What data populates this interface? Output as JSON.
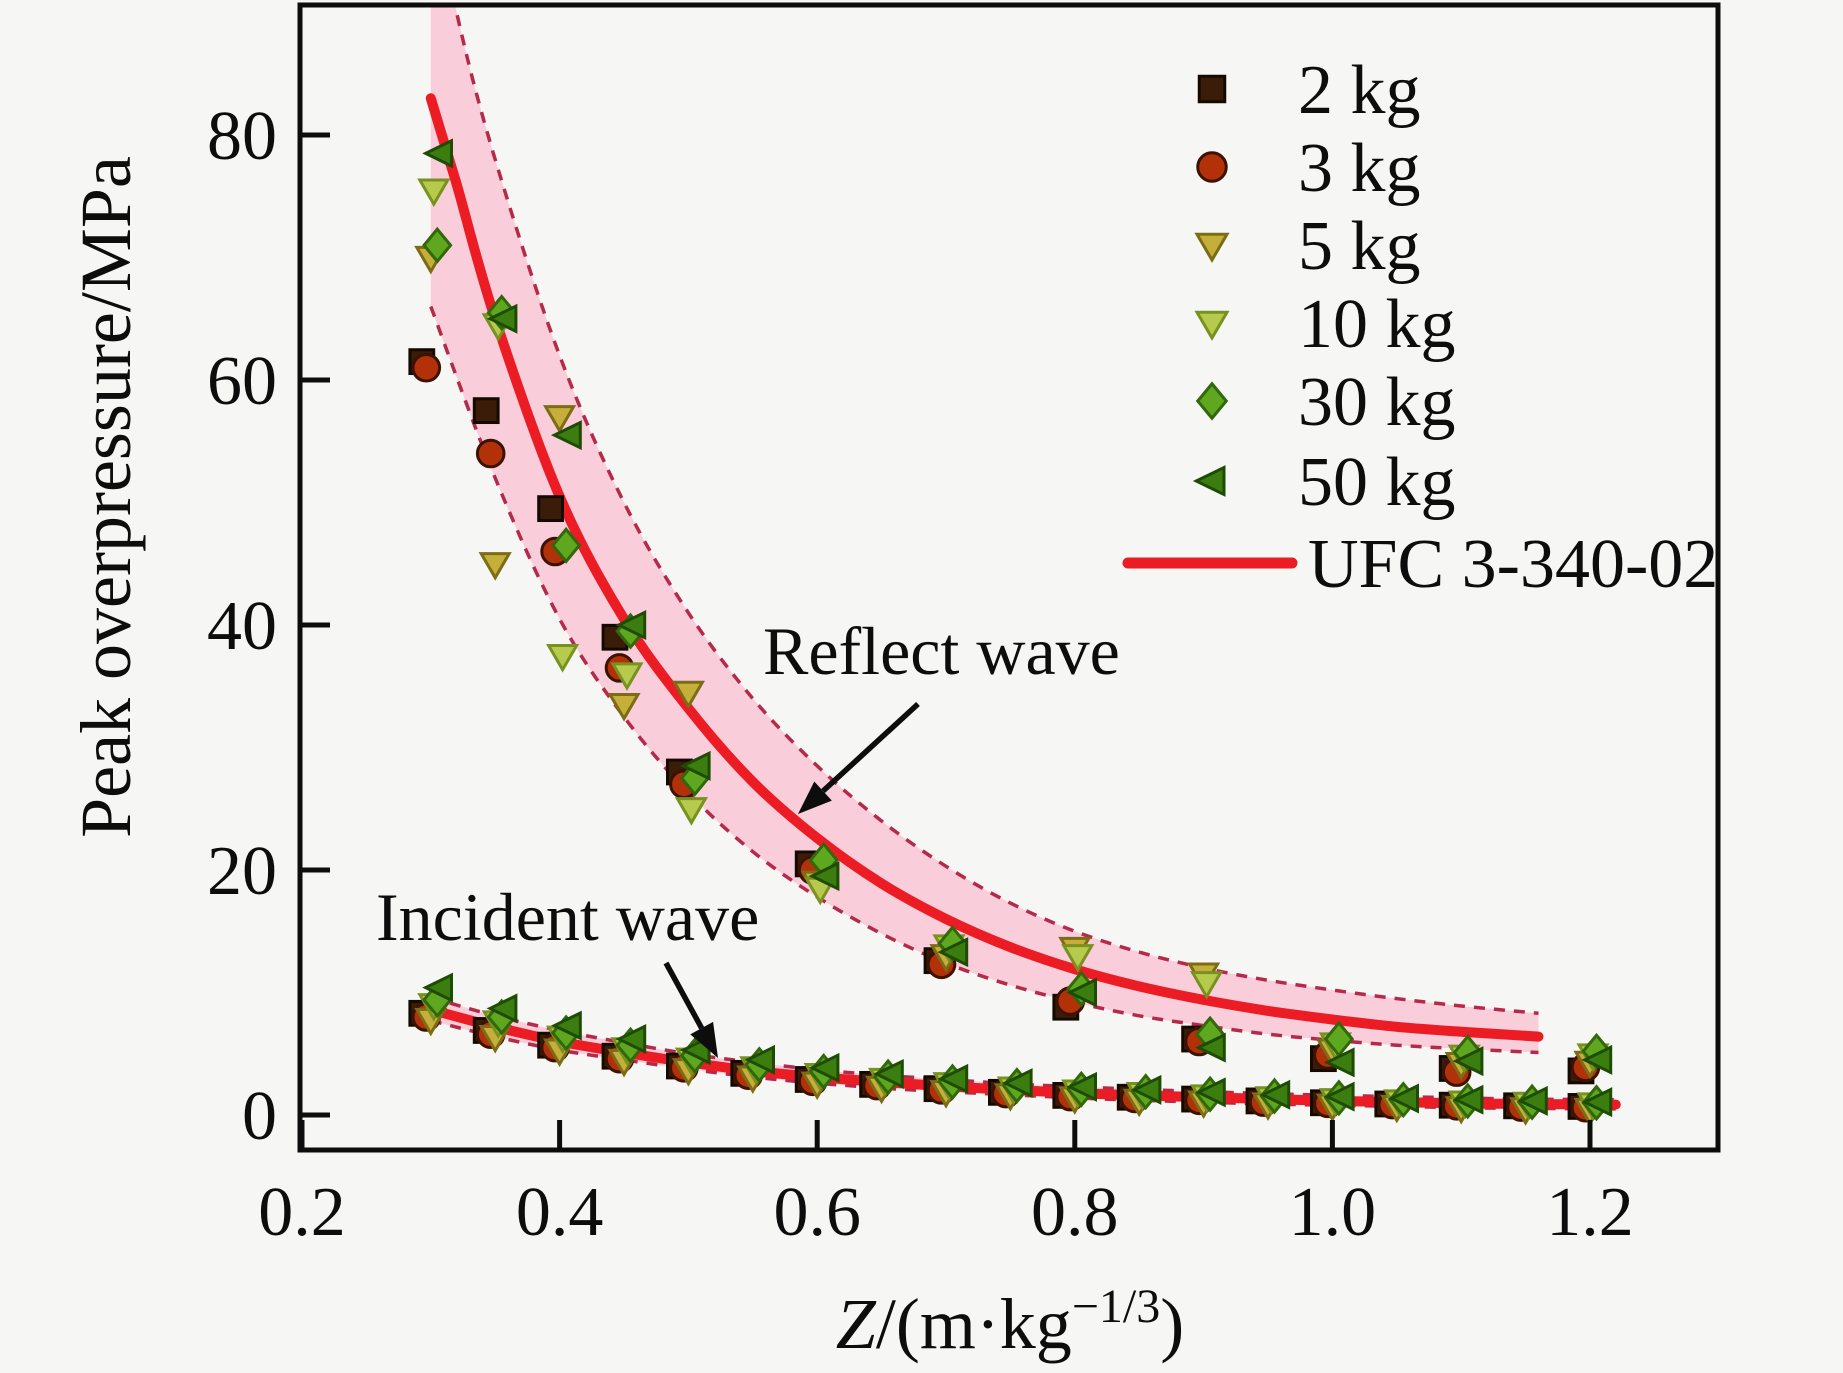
{
  "figure": {
    "background": "#f6f6f5",
    "text_color": "#0d0d0d"
  },
  "chart_data": {
    "type": "scatter",
    "title": "",
    "xlabel": {
      "variable": "Z",
      "unit_prefix": "/(m·kg",
      "exponent": "−1/3",
      "unit_suffix": ")"
    },
    "ylabel": "Peak overpressure/MPa",
    "xlim": [
      0.2,
      1.3
    ],
    "ylim": [
      -2.9,
      90.6
    ],
    "grid": false,
    "x_ticks": {
      "values": [
        0.2,
        0.4,
        0.6,
        0.8,
        1.0,
        1.2
      ],
      "labels": [
        "0.2",
        "0.4",
        "0.6",
        "0.8",
        "1.0",
        "1.2"
      ]
    },
    "y_ticks": {
      "values": [
        0,
        20,
        40,
        60,
        80
      ],
      "labels": [
        "0",
        "20",
        "40",
        "60",
        "80"
      ]
    },
    "legend": {
      "position": "top-right",
      "line_item_label": "UFC 3-340-02",
      "line_item_color": "#ec1c24"
    },
    "annotations": [
      {
        "id": "reflect-wave",
        "text": "Reflect wave"
      },
      {
        "id": "incident-wave",
        "text": "Incident wave"
      }
    ],
    "band": {
      "fill": "#f9cdda",
      "edge": "#b5294a",
      "edge_style": "dashed"
    },
    "ufc_curves": {
      "label": "UFC 3-340-02",
      "color": "#ec1c24",
      "reflect": [
        [
          0.3,
          83
        ],
        [
          0.32,
          76
        ],
        [
          0.35,
          65
        ],
        [
          0.4,
          50.5
        ],
        [
          0.45,
          40.5
        ],
        [
          0.5,
          33.2
        ],
        [
          0.55,
          27.2
        ],
        [
          0.6,
          22.6
        ],
        [
          0.65,
          18.9
        ],
        [
          0.7,
          16.0
        ],
        [
          0.75,
          13.7
        ],
        [
          0.8,
          11.9
        ],
        [
          0.85,
          10.5
        ],
        [
          0.9,
          9.4
        ],
        [
          0.95,
          8.5
        ],
        [
          1.0,
          7.8
        ],
        [
          1.05,
          7.2
        ],
        [
          1.1,
          6.8
        ],
        [
          1.16,
          6.4
        ]
      ],
      "reflect_band_upper": [
        [
          0.3,
          101
        ],
        [
          0.32,
          90
        ],
        [
          0.35,
          78
        ],
        [
          0.4,
          62
        ],
        [
          0.45,
          50
        ],
        [
          0.5,
          41
        ],
        [
          0.55,
          34
        ],
        [
          0.6,
          28.5
        ],
        [
          0.65,
          24
        ],
        [
          0.7,
          20.3
        ],
        [
          0.75,
          17.3
        ],
        [
          0.8,
          15.0
        ],
        [
          0.85,
          13.3
        ],
        [
          0.9,
          12.0
        ],
        [
          0.95,
          11.0
        ],
        [
          1.0,
          10.2
        ],
        [
          1.05,
          9.5
        ],
        [
          1.1,
          8.9
        ],
        [
          1.16,
          8.3
        ]
      ],
      "reflect_band_lower": [
        [
          0.3,
          66
        ],
        [
          0.35,
          52
        ],
        [
          0.4,
          40.5
        ],
        [
          0.45,
          32.5
        ],
        [
          0.5,
          26.3
        ],
        [
          0.55,
          21.5
        ],
        [
          0.6,
          17.8
        ],
        [
          0.65,
          14.8
        ],
        [
          0.7,
          12.4
        ],
        [
          0.75,
          10.6
        ],
        [
          0.8,
          9.2
        ],
        [
          0.85,
          8.1
        ],
        [
          0.9,
          7.3
        ],
        [
          0.95,
          6.6
        ],
        [
          1.0,
          6.1
        ],
        [
          1.05,
          5.7
        ],
        [
          1.1,
          5.4
        ],
        [
          1.16,
          5.1
        ]
      ],
      "incident": [
        [
          0.3,
          8.6
        ],
        [
          0.35,
          7.2
        ],
        [
          0.4,
          6.0
        ],
        [
          0.45,
          5.1
        ],
        [
          0.5,
          4.3
        ],
        [
          0.55,
          3.6
        ],
        [
          0.6,
          3.1
        ],
        [
          0.65,
          2.7
        ],
        [
          0.7,
          2.35
        ],
        [
          0.75,
          2.05
        ],
        [
          0.8,
          1.8
        ],
        [
          0.85,
          1.6
        ],
        [
          0.9,
          1.45
        ],
        [
          0.95,
          1.3
        ],
        [
          1.0,
          1.15
        ],
        [
          1.05,
          1.05
        ],
        [
          1.1,
          0.95
        ],
        [
          1.15,
          0.9
        ],
        [
          1.22,
          0.85
        ]
      ],
      "incident_band_upper": [
        [
          0.3,
          9.6
        ],
        [
          0.35,
          8.1
        ],
        [
          0.4,
          6.9
        ],
        [
          0.45,
          5.9
        ],
        [
          0.5,
          5.0
        ],
        [
          0.55,
          4.3
        ],
        [
          0.6,
          3.7
        ],
        [
          0.65,
          3.25
        ],
        [
          0.7,
          2.9
        ],
        [
          0.75,
          2.55
        ],
        [
          0.8,
          2.3
        ],
        [
          0.85,
          2.1
        ],
        [
          0.9,
          1.9
        ],
        [
          0.95,
          1.75
        ],
        [
          1.0,
          1.6
        ],
        [
          1.05,
          1.5
        ],
        [
          1.1,
          1.4
        ],
        [
          1.15,
          1.3
        ],
        [
          1.22,
          1.25
        ]
      ],
      "incident_band_lower": [
        [
          0.3,
          7.7
        ],
        [
          0.35,
          6.4
        ],
        [
          0.4,
          5.3
        ],
        [
          0.45,
          4.5
        ],
        [
          0.5,
          3.75
        ],
        [
          0.55,
          3.1
        ],
        [
          0.6,
          2.6
        ],
        [
          0.65,
          2.2
        ],
        [
          0.7,
          1.9
        ],
        [
          0.75,
          1.65
        ],
        [
          0.8,
          1.4
        ],
        [
          0.85,
          1.2
        ],
        [
          0.9,
          1.05
        ],
        [
          0.95,
          0.9
        ],
        [
          1.0,
          0.8
        ],
        [
          1.05,
          0.7
        ],
        [
          1.1,
          0.6
        ],
        [
          1.15,
          0.55
        ],
        [
          1.22,
          0.5
        ]
      ]
    },
    "series": [
      {
        "label": "2 kg",
        "marker": "square",
        "color": "#3a1c08",
        "edge": "#140a02",
        "reflect": [
          [
            0.3,
            61.5
          ],
          [
            0.35,
            57.5
          ],
          [
            0.4,
            49.5
          ],
          [
            0.45,
            39.0
          ],
          [
            0.5,
            28.0
          ],
          [
            0.6,
            20.5
          ],
          [
            0.7,
            12.6
          ],
          [
            0.8,
            8.8
          ],
          [
            0.9,
            6.2
          ],
          [
            1.0,
            4.6
          ],
          [
            1.1,
            3.8
          ],
          [
            1.2,
            3.6
          ]
        ],
        "incident": [
          [
            0.3,
            8.3
          ],
          [
            0.35,
            6.9
          ],
          [
            0.4,
            5.7
          ],
          [
            0.45,
            4.8
          ],
          [
            0.5,
            4.0
          ],
          [
            0.55,
            3.4
          ],
          [
            0.6,
            2.9
          ],
          [
            0.65,
            2.5
          ],
          [
            0.7,
            2.15
          ],
          [
            0.75,
            1.85
          ],
          [
            0.8,
            1.6
          ],
          [
            0.85,
            1.45
          ],
          [
            0.9,
            1.3
          ],
          [
            0.95,
            1.15
          ],
          [
            1.0,
            1.0
          ],
          [
            1.05,
            0.9
          ],
          [
            1.1,
            0.8
          ],
          [
            1.15,
            0.75
          ],
          [
            1.2,
            0.7
          ]
        ]
      },
      {
        "label": "3 kg",
        "marker": "circle",
        "color": "#b23108",
        "edge": "#3c1203",
        "reflect": [
          [
            0.3,
            61.0
          ],
          [
            0.35,
            54.0
          ],
          [
            0.4,
            46.0
          ],
          [
            0.45,
            36.5
          ],
          [
            0.5,
            27.0
          ],
          [
            0.6,
            20.0
          ],
          [
            0.7,
            12.3
          ],
          [
            0.8,
            9.3
          ],
          [
            0.9,
            6.0
          ],
          [
            1.0,
            4.9
          ],
          [
            1.1,
            3.5
          ],
          [
            1.2,
            3.9
          ]
        ],
        "incident": [
          [
            0.3,
            8.0
          ],
          [
            0.35,
            6.6
          ],
          [
            0.4,
            5.5
          ],
          [
            0.45,
            4.6
          ],
          [
            0.5,
            3.85
          ],
          [
            0.55,
            3.25
          ],
          [
            0.6,
            2.75
          ],
          [
            0.65,
            2.4
          ],
          [
            0.7,
            2.05
          ],
          [
            0.75,
            1.75
          ],
          [
            0.8,
            1.5
          ],
          [
            0.85,
            1.35
          ],
          [
            0.9,
            1.2
          ],
          [
            0.95,
            1.05
          ],
          [
            1.0,
            0.95
          ],
          [
            1.05,
            0.85
          ],
          [
            1.1,
            0.75
          ],
          [
            1.15,
            0.65
          ],
          [
            1.2,
            0.6
          ]
        ]
      },
      {
        "label": "5 kg",
        "marker": "triangle-down",
        "color": "#c5ae3a",
        "edge": "#7c6c16",
        "reflect": [
          [
            0.3,
            70.0
          ],
          [
            0.35,
            45.0
          ],
          [
            0.4,
            57.0
          ],
          [
            0.45,
            33.5
          ],
          [
            0.5,
            34.5
          ],
          [
            0.6,
            19.0
          ],
          [
            0.7,
            13.0
          ],
          [
            0.8,
            13.6
          ],
          [
            0.9,
            11.5
          ],
          [
            1.0,
            5.3
          ],
          [
            1.1,
            4.2
          ],
          [
            1.2,
            4.3
          ]
        ],
        "incident": [
          [
            0.3,
            7.8
          ],
          [
            0.35,
            6.4
          ],
          [
            0.4,
            5.3
          ],
          [
            0.45,
            4.45
          ],
          [
            0.5,
            3.7
          ],
          [
            0.55,
            3.1
          ],
          [
            0.6,
            2.6
          ],
          [
            0.65,
            2.25
          ],
          [
            0.7,
            1.9
          ],
          [
            0.75,
            1.65
          ],
          [
            0.8,
            1.4
          ],
          [
            0.85,
            1.2
          ],
          [
            0.9,
            1.05
          ],
          [
            0.95,
            0.9
          ],
          [
            1.0,
            0.8
          ],
          [
            1.05,
            0.7
          ],
          [
            1.1,
            0.6
          ],
          [
            1.15,
            0.5
          ],
          [
            1.2,
            0.45
          ]
        ]
      },
      {
        "label": "10 kg",
        "marker": "triangle-down",
        "color": "#b6ca4e",
        "edge": "#79911f",
        "reflect": [
          [
            0.3,
            75.5
          ],
          [
            0.35,
            64.5
          ],
          [
            0.4,
            37.5
          ],
          [
            0.45,
            36.0
          ],
          [
            0.5,
            25.0
          ],
          [
            0.6,
            18.5
          ],
          [
            0.7,
            13.8
          ],
          [
            0.8,
            13.0
          ],
          [
            0.9,
            10.8
          ],
          [
            1.0,
            5.8
          ],
          [
            1.1,
            4.8
          ],
          [
            1.2,
            4.9
          ]
        ],
        "incident": [
          [
            0.3,
            9.0
          ],
          [
            0.35,
            7.6
          ],
          [
            0.4,
            6.35
          ],
          [
            0.45,
            5.4
          ],
          [
            0.5,
            4.55
          ],
          [
            0.55,
            3.85
          ],
          [
            0.6,
            3.3
          ],
          [
            0.65,
            2.9
          ],
          [
            0.7,
            2.55
          ],
          [
            0.75,
            2.2
          ],
          [
            0.8,
            1.95
          ],
          [
            0.85,
            1.75
          ],
          [
            0.9,
            1.55
          ],
          [
            0.95,
            1.4
          ],
          [
            1.0,
            1.25
          ],
          [
            1.05,
            1.15
          ],
          [
            1.1,
            1.05
          ],
          [
            1.15,
            0.95
          ],
          [
            1.2,
            0.9
          ]
        ]
      },
      {
        "label": "30 kg",
        "marker": "diamond",
        "color": "#5fa71e",
        "edge": "#31680c",
        "reflect": [
          [
            0.3,
            71.0
          ],
          [
            0.35,
            65.5
          ],
          [
            0.4,
            46.5
          ],
          [
            0.45,
            39.5
          ],
          [
            0.5,
            27.5
          ],
          [
            0.6,
            20.8
          ],
          [
            0.7,
            14.0
          ],
          [
            0.8,
            10.3
          ],
          [
            0.9,
            6.6
          ],
          [
            1.0,
            6.2
          ],
          [
            1.1,
            5.1
          ],
          [
            1.2,
            5.2
          ]
        ],
        "incident": [
          [
            0.3,
            9.4
          ],
          [
            0.35,
            8.0
          ],
          [
            0.4,
            6.7
          ],
          [
            0.45,
            5.7
          ],
          [
            0.5,
            4.85
          ],
          [
            0.55,
            4.1
          ],
          [
            0.6,
            3.55
          ],
          [
            0.65,
            3.1
          ],
          [
            0.7,
            2.7
          ],
          [
            0.75,
            2.4
          ],
          [
            0.8,
            2.1
          ],
          [
            0.85,
            1.9
          ],
          [
            0.9,
            1.7
          ],
          [
            0.95,
            1.55
          ],
          [
            1.0,
            1.4
          ],
          [
            1.05,
            1.25
          ],
          [
            1.1,
            1.15
          ],
          [
            1.15,
            1.05
          ],
          [
            1.2,
            1.0
          ]
        ]
      },
      {
        "label": "50 kg",
        "marker": "triangle-left",
        "color": "#3c7d10",
        "edge": "#1e4c05",
        "reflect": [
          [
            0.3,
            78.5
          ],
          [
            0.35,
            65.0
          ],
          [
            0.4,
            55.5
          ],
          [
            0.45,
            40.0
          ],
          [
            0.5,
            28.5
          ],
          [
            0.6,
            19.5
          ],
          [
            0.7,
            13.3
          ],
          [
            0.8,
            10.0
          ],
          [
            0.9,
            5.5
          ],
          [
            1.0,
            4.3
          ],
          [
            1.1,
            4.4
          ],
          [
            1.2,
            4.5
          ]
        ],
        "incident": [
          [
            0.3,
            10.4
          ],
          [
            0.35,
            8.7
          ],
          [
            0.4,
            7.3
          ],
          [
            0.45,
            6.2
          ],
          [
            0.5,
            5.3
          ],
          [
            0.55,
            4.5
          ],
          [
            0.6,
            3.85
          ],
          [
            0.65,
            3.35
          ],
          [
            0.7,
            2.95
          ],
          [
            0.75,
            2.6
          ],
          [
            0.8,
            2.3
          ],
          [
            0.85,
            2.05
          ],
          [
            0.9,
            1.85
          ],
          [
            0.95,
            1.65
          ],
          [
            1.0,
            1.5
          ],
          [
            1.05,
            1.35
          ],
          [
            1.1,
            1.25
          ],
          [
            1.15,
            1.15
          ],
          [
            1.2,
            1.05
          ]
        ]
      }
    ]
  }
}
